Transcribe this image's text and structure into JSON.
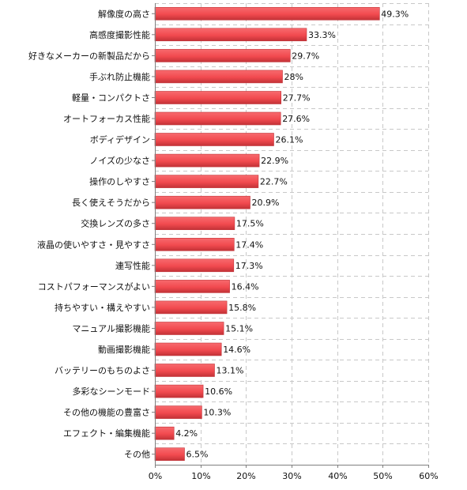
{
  "chart_data": {
    "type": "bar",
    "orientation": "horizontal",
    "categories": [
      "解像度の高さ",
      "高感度撮影性能",
      "好きなメーカーの新製品だから",
      "手ぶれ防止機能",
      "軽量・コンパクトさ",
      "オートフォーカス性能",
      "ボディデザイン",
      "ノイズの少なさ",
      "操作のしやすさ",
      "長く使えそうだから",
      "交換レンズの多さ",
      "液晶の使いやすさ・見やすさ",
      "連写性能",
      "コストパフォーマンスがよい",
      "持ちやすい・構えやすい",
      "マニュアル撮影機能",
      "動画撮影機能",
      "バッテリーのもちのよさ",
      "多彩なシーンモード",
      "その他の機能の豊富さ",
      "エフェクト・編集機能",
      "その他"
    ],
    "values": [
      49.3,
      33.3,
      29.7,
      28,
      27.7,
      27.6,
      26.1,
      22.9,
      22.7,
      20.9,
      17.5,
      17.4,
      17.3,
      16.4,
      15.8,
      15.1,
      14.6,
      13.1,
      10.6,
      10.3,
      4.2,
      6.5
    ],
    "value_labels": [
      "49.3%",
      "33.3%",
      "29.7%",
      "28%",
      "27.7%",
      "27.6%",
      "26.1%",
      "22.9%",
      "22.7%",
      "20.9%",
      "17.5%",
      "17.4%",
      "17.3%",
      "16.4%",
      "15.8%",
      "15.1%",
      "14.6%",
      "13.1%",
      "10.6%",
      "10.3%",
      "4.2%",
      "6.5%"
    ],
    "xlim": [
      0,
      60
    ],
    "xticks": [
      "0%",
      "10%",
      "20%",
      "30%",
      "40%",
      "50%",
      "60%"
    ],
    "grid": true,
    "colors": {
      "bar": "#f24a4f",
      "bar_shade": "#c23237",
      "grid": "#c8c8c8"
    }
  }
}
